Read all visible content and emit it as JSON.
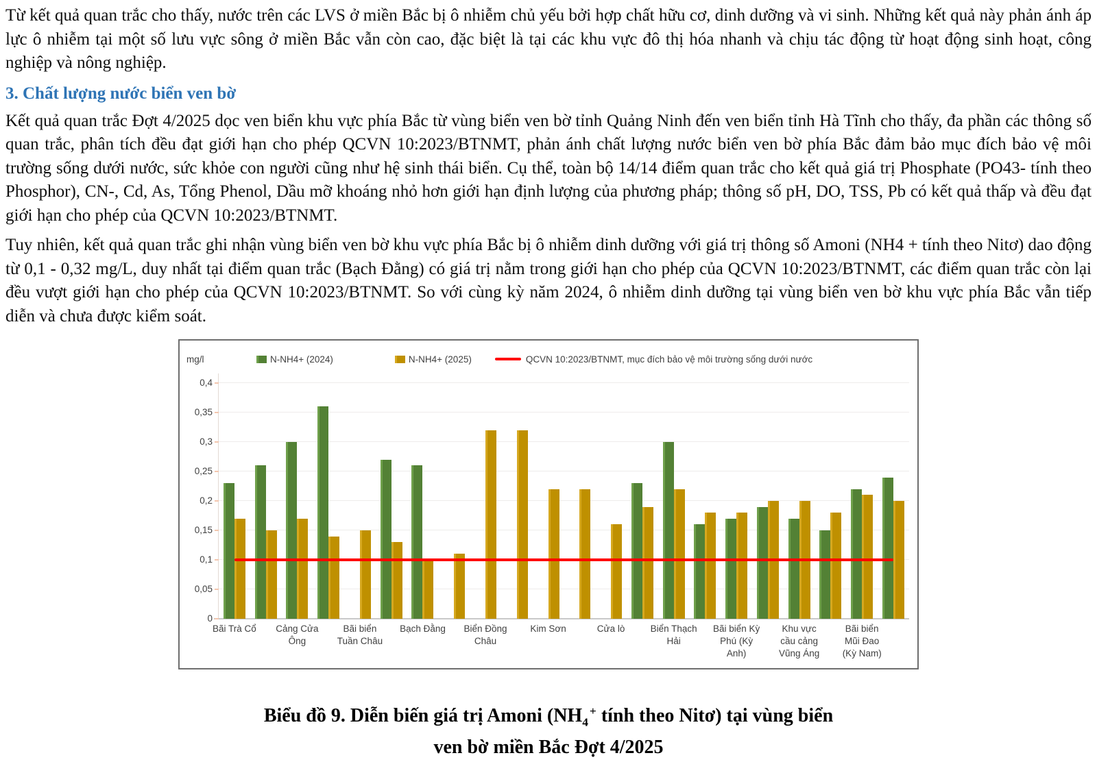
{
  "document": {
    "heading": "3. Chất lượng nước biển ven bờ",
    "paragraphs": [
      "Từ kết quả quan trắc cho thấy, nước trên các LVS ở miền Bắc bị ô nhiễm chủ yếu bởi hợp chất hữu cơ, dinh dưỡng và vi sinh. Những kết quả này phản ánh áp lực ô nhiễm tại một số lưu vực sông ở miền Bắc vẫn còn cao, đặc biệt là tại các khu vực đô thị hóa nhanh và chịu tác động từ hoạt động sinh hoạt, công nghiệp và nông nghiệp.",
      "Kết quả quan trắc Đợt 4/2025 dọc ven biển khu vực phía Bắc từ vùng biển ven bờ tỉnh Quảng Ninh đến ven biển tỉnh Hà Tĩnh cho thấy, đa phần các thông số quan trắc, phân tích đều đạt giới hạn cho phép QCVN 10:2023/BTNMT, phản ánh chất lượng nước biển ven bờ phía Bắc đảm bảo mục đích bảo vệ môi trường sống dưới nước, sức khỏe con người cũng như hệ sinh thái biển. Cụ thể, toàn bộ 14/14 điểm quan trắc cho kết quả giá trị Phosphate (PO43- tính theo Phosphor), CN-, Cd, As, Tổng Phenol, Dầu mỡ khoáng nhỏ hơn giới hạn định lượng của phương pháp; thông số pH, DO, TSS, Pb có kết quả thấp và đều đạt giới hạn cho phép của QCVN 10:2023/BTNMT.",
      "Tuy nhiên, kết quả quan trắc ghi nhận vùng biển ven bờ khu vực phía Bắc bị ô nhiễm dinh dưỡng với giá trị thông số Amoni (NH4 + tính theo Nitơ) dao động từ 0,1 - 0,32 mg/L, duy nhất tại điểm quan trắc (Bạch Đằng) có giá trị nằm trong giới hạn cho phép của QCVN 10:2023/BTNMT, các điểm quan trắc còn lại đều vượt giới hạn cho phép của QCVN 10:2023/BTNMT. So với cùng kỳ năm 2024, ô nhiễm dinh dưỡng tại vùng biển ven bờ khu vực phía Bắc vẫn tiếp diễn và chưa được kiểm soát."
    ]
  },
  "chart_data": {
    "type": "bar",
    "title": "Biểu đồ 9. Diễn biến giá trị Amoni (NH4+ tính theo Nitơ) tại vùng biển ven bờ miền Bắc Đợt 4/2025",
    "ylabel": "mg/l",
    "xlabel": "",
    "ylim": [
      0,
      0.4
    ],
    "ytick_step": 0.05,
    "ytick_labels": [
      "0",
      "0,05",
      "0,1",
      "0,15",
      "0,2",
      "0,25",
      "0,3",
      "0,35",
      "0,4"
    ],
    "grid": true,
    "legend_position": "top",
    "categories": [
      "Bãi Trà Cổ",
      "",
      "Cảng Cửa Ông",
      "",
      "Bãi biển Tuần Châu",
      "",
      "Bạch Đằng",
      "",
      "Biển Đồng Châu",
      "",
      "Kim Sơn",
      "",
      "Cửa lò",
      "",
      "Biển Thạch Hải",
      "",
      "Bãi biển Kỳ Phú (Kỳ Anh)",
      "",
      "Khu vực cầu cảng Vũng Áng",
      "",
      "Bãi biển Mũi Đao (Kỳ Nam)",
      ""
    ],
    "category_label_lines": [
      [
        "Bãi Trà Cổ"
      ],
      [],
      [
        "Cảng Cửa",
        "Ông"
      ],
      [],
      [
        "Bãi biển",
        "Tuần Châu"
      ],
      [],
      [
        "Bạch Đằng"
      ],
      [],
      [
        "Biển Đồng",
        "Châu"
      ],
      [],
      [
        "Kim Sơn"
      ],
      [],
      [
        "Cửa lò"
      ],
      [],
      [
        "Biển Thạch",
        "Hải"
      ],
      [],
      [
        "Bãi biển Kỳ",
        "Phú (Kỳ",
        "Anh)"
      ],
      [],
      [
        "Khu vực",
        "cầu cảng",
        "Vũng Áng"
      ],
      [],
      [
        "Bãi biển",
        "Mũi Đao",
        "(Kỳ Nam)"
      ],
      []
    ],
    "series": [
      {
        "name": "N-NH4+ (2024)",
        "color": "#538135",
        "values": [
          0.23,
          0.26,
          0.3,
          0.36,
          null,
          0.27,
          0.26,
          null,
          null,
          null,
          null,
          null,
          null,
          0.23,
          0.3,
          0.16,
          0.17,
          0.19,
          0.17,
          0.15,
          0.22,
          0.24
        ]
      },
      {
        "name": "N-NH4+ (2025)",
        "color": "#BF9000",
        "values": [
          0.17,
          0.15,
          0.17,
          0.14,
          0.15,
          0.13,
          0.1,
          0.11,
          0.32,
          0.32,
          0.22,
          0.22,
          0.16,
          0.19,
          0.22,
          0.18,
          0.18,
          0.2,
          0.2,
          0.18,
          0.21,
          0.2
        ]
      }
    ],
    "reference_line": {
      "label": "QCVN 10:2023/BTNMT,  mục đích bảo vệ môi trường sống dưới nước",
      "value": 0.1,
      "color": "#FF0000"
    }
  },
  "caption": {
    "pre": "Biểu đồ 9. Diễn biến giá trị Amoni (NH",
    "sub": "4",
    "sup": "+",
    "post": " tính theo Nitơ) tại vùng biển",
    "line2": "ven bờ miền Bắc Đợt 4/2025"
  },
  "colors": {
    "series_2024": "#538135",
    "series_2025": "#BF9000",
    "reference_line": "#FF0000",
    "heading": "#2E74B5"
  }
}
